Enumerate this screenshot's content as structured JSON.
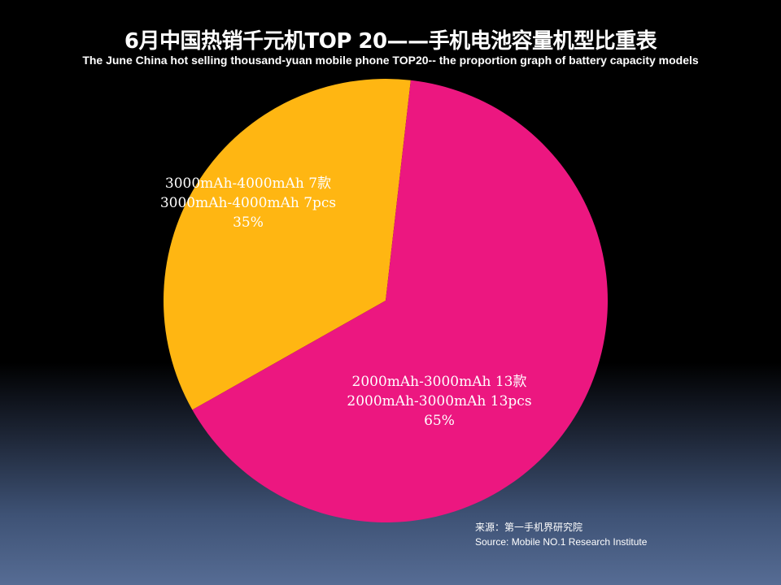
{
  "title": "6月中国热销千元机TOP 20——手机电池容量机型比重表",
  "subtitle": "The June China hot selling thousand-yuan mobile phone TOP20-- the proportion graph of battery capacity models",
  "chart_data": {
    "type": "pie",
    "title": "6月中国热销千元机TOP 20——手机电池容量机型比重表",
    "subtitle": "The June China hot selling thousand-yuan mobile phone TOP20-- the proportion graph of battery capacity models",
    "slices": [
      {
        "category": "3000mAh-4000mAh",
        "count": 7,
        "percent": 35,
        "label_zh": "3000mAh-4000mAh 7款",
        "label_en": "3000mAh-4000mAh 7pcs",
        "label_pct": "35%",
        "color": "#FFB612"
      },
      {
        "category": "2000mAh-3000mAh",
        "count": 13,
        "percent": 65,
        "label_zh": "2000mAh-3000mAh 13款",
        "label_en": "2000mAh-3000mAh 13pcs",
        "label_pct": "65%",
        "color": "#EC1780"
      }
    ]
  },
  "source": {
    "zh": "来源：第一手机界研究院",
    "en": "Source: Mobile NO.1 Research Institute"
  }
}
